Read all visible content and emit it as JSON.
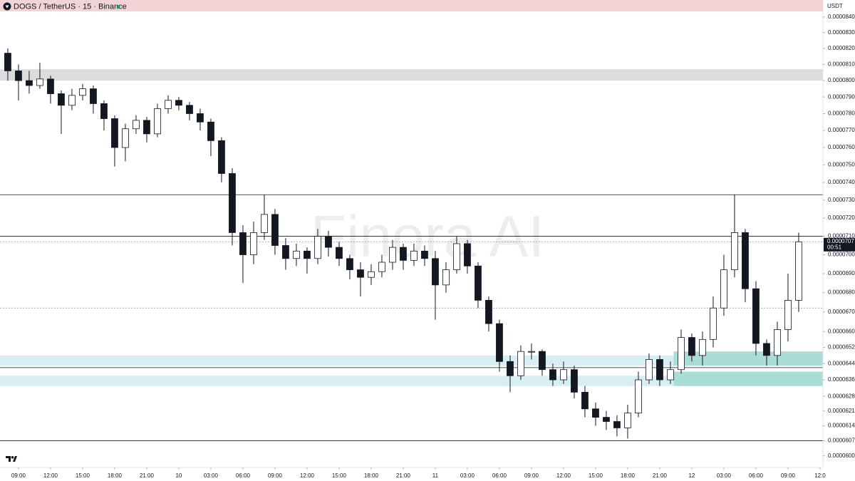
{
  "chart_data": {
    "type": "candlestick",
    "title": "DOGS / TetherUS · 15 · Binance",
    "currency": "USDT",
    "watermark": "Finora AI",
    "ylog": true,
    "ylim": [
      5.95e-05,
      8.51e-05
    ],
    "xlim": [
      7.27,
      84.27
    ],
    "yticks": [
      {
        "value": 8.4e-05,
        "label": "0.0000840"
      },
      {
        "value": 8.3e-05,
        "label": "0.0000830"
      },
      {
        "value": 8.2e-05,
        "label": "0.0000820"
      },
      {
        "value": 8.1e-05,
        "label": "0.0000810"
      },
      {
        "value": 8e-05,
        "label": "0.0000800"
      },
      {
        "value": 7.9e-05,
        "label": "0.0000790"
      },
      {
        "value": 7.8e-05,
        "label": "0.0000780"
      },
      {
        "value": 7.7e-05,
        "label": "0.0000770"
      },
      {
        "value": 7.6e-05,
        "label": "0.0000760"
      },
      {
        "value": 7.5e-05,
        "label": "0.0000750"
      },
      {
        "value": 7.4e-05,
        "label": "0.0000740"
      },
      {
        "value": 7.3e-05,
        "label": "0.0000730"
      },
      {
        "value": 7.2e-05,
        "label": "0.0000720"
      },
      {
        "value": 7.1e-05,
        "label": "0.0000710"
      },
      {
        "value": 7e-05,
        "label": "0.0000700"
      },
      {
        "value": 6.9e-05,
        "label": "0.0000690"
      },
      {
        "value": 6.8e-05,
        "label": "0.0000680"
      },
      {
        "value": 6.7e-05,
        "label": "0.0000670"
      },
      {
        "value": 6.6e-05,
        "label": "0.0000660"
      },
      {
        "value": 6.52e-05,
        "label": "0.0000652"
      },
      {
        "value": 6.44e-05,
        "label": "0.0000644"
      },
      {
        "value": 6.36e-05,
        "label": "0.0000636"
      },
      {
        "value": 6.28e-05,
        "label": "0.0000628"
      },
      {
        "value": 6.21e-05,
        "label": "0.0000621"
      },
      {
        "value": 6.14e-05,
        "label": "0.0000614"
      },
      {
        "value": 6.07e-05,
        "label": "0.0000607"
      },
      {
        "value": 6e-05,
        "label": "0.0000600"
      }
    ],
    "xticks": [
      {
        "value": 9,
        "label": "09:00"
      },
      {
        "value": 12,
        "label": "12:00"
      },
      {
        "value": 15,
        "label": "15:00"
      },
      {
        "value": 18,
        "label": "18:00"
      },
      {
        "value": 21,
        "label": "21:00"
      },
      {
        "value": 24,
        "label": "10"
      },
      {
        "value": 27,
        "label": "03:00"
      },
      {
        "value": 30,
        "label": "06:00"
      },
      {
        "value": 33,
        "label": "09:00"
      },
      {
        "value": 36,
        "label": "12:00"
      },
      {
        "value": 39,
        "label": "15:00"
      },
      {
        "value": 42,
        "label": "18:00"
      },
      {
        "value": 45,
        "label": "21:00"
      },
      {
        "value": 48,
        "label": "11"
      },
      {
        "value": 51,
        "label": "03:00"
      },
      {
        "value": 54,
        "label": "06:00"
      },
      {
        "value": 57,
        "label": "09:00"
      },
      {
        "value": 60,
        "label": "12:00"
      },
      {
        "value": 63,
        "label": "15:00"
      },
      {
        "value": 66,
        "label": "18:00"
      },
      {
        "value": 69,
        "label": "21:00"
      },
      {
        "value": 72,
        "label": "12"
      },
      {
        "value": 75,
        "label": "03:00"
      },
      {
        "value": 78,
        "label": "06:00"
      },
      {
        "value": 81,
        "label": "09:00"
      },
      {
        "value": 84,
        "label": "12:0"
      }
    ],
    "last_price": {
      "value": 7.07e-05,
      "label": "0.0000707"
    },
    "countdown": "00:51",
    "levels": [
      {
        "value": 7.33e-05,
        "style": "solid"
      },
      {
        "value": 7.1e-05,
        "style": "solid"
      },
      {
        "value": 6.42e-05,
        "style": "solid"
      },
      {
        "value": 6.07e-05,
        "style": "solid"
      },
      {
        "value": 7.07e-05,
        "style": "dotted"
      },
      {
        "value": 6.72e-05,
        "style": "dotted"
      }
    ],
    "zones": [
      {
        "range": [
          8e-05,
          8.07e-05
        ],
        "color": "#dcdcdc",
        "x_from": 7.27
      },
      {
        "range": [
          6.43e-05,
          6.48e-05
        ],
        "color": "#d7eef2",
        "x_from": 7.27
      },
      {
        "range": [
          6.33e-05,
          6.38e-05
        ],
        "color": "#d7eef2",
        "x_from": 7.27
      },
      {
        "range": [
          6.43e-05,
          6.5e-05
        ],
        "color": "#a9ddd6",
        "x_from": 70.3
      },
      {
        "range": [
          6.33e-05,
          6.4e-05
        ],
        "color": "#a9ddd6",
        "x_from": 70.3
      }
    ],
    "x": [
      8,
      9,
      10,
      11,
      12,
      13,
      14,
      15,
      16,
      17,
      18,
      19,
      20,
      21,
      22,
      23,
      24,
      25,
      26,
      27,
      28,
      29,
      30,
      31,
      32,
      33,
      34,
      35,
      36,
      37,
      38,
      39,
      40,
      41,
      42,
      43,
      44,
      45,
      46,
      47,
      48,
      49,
      50,
      51,
      52,
      53,
      54,
      55,
      56,
      57,
      58,
      59,
      60,
      61,
      62,
      63,
      64,
      65,
      66,
      67,
      68,
      69,
      70,
      71,
      72,
      73,
      74,
      75,
      76,
      77,
      78,
      79,
      80,
      81,
      82
    ],
    "open": [
      8.17e-05,
      8.06e-05,
      8e-05,
      7.97e-05,
      8.01e-05,
      7.92e-05,
      7.85e-05,
      7.91e-05,
      7.95e-05,
      7.86e-05,
      7.77e-05,
      7.6e-05,
      7.71e-05,
      7.76e-05,
      7.68e-05,
      7.83e-05,
      7.88e-05,
      7.85e-05,
      7.8e-05,
      7.75e-05,
      7.64e-05,
      7.45e-05,
      7.12e-05,
      7e-05,
      7.12e-05,
      7.22e-05,
      7.05e-05,
      6.98e-05,
      7.02e-05,
      6.98e-05,
      7.1e-05,
      7.04e-05,
      6.98e-05,
      6.92e-05,
      6.88e-05,
      6.91e-05,
      6.96e-05,
      7.04e-05,
      6.97e-05,
      7.02e-05,
      6.98e-05,
      6.84e-05,
      6.92e-05,
      7.06e-05,
      6.94e-05,
      6.76e-05,
      6.64e-05,
      6.45e-05,
      6.38e-05,
      6.5e-05,
      6.5e-05,
      6.41e-05,
      6.36e-05,
      6.41e-05,
      6.3e-05,
      6.22e-05,
      6.18e-05,
      6.16e-05,
      6.13e-05,
      6.2e-05,
      6.36e-05,
      6.46e-05,
      6.36e-05,
      6.41e-05,
      6.57e-05,
      6.48e-05,
      6.56e-05,
      6.72e-05,
      6.92e-05,
      7.12e-05,
      6.82e-05,
      6.54e-05,
      6.48e-05,
      6.61e-05,
      6.76e-05
    ],
    "high": [
      8.2e-05,
      8.1e-05,
      8.06e-05,
      8.11e-05,
      8.03e-05,
      7.94e-05,
      7.95e-05,
      7.98e-05,
      7.97e-05,
      7.88e-05,
      7.79e-05,
      7.74e-05,
      7.79e-05,
      7.78e-05,
      7.86e-05,
      7.91e-05,
      7.9e-05,
      7.87e-05,
      7.83e-05,
      7.77e-05,
      7.66e-05,
      7.48e-05,
      7.16e-05,
      7.18e-05,
      7.33e-05,
      7.25e-05,
      7.09e-05,
      7.06e-05,
      7.04e-05,
      7.14e-05,
      7.13e-05,
      7.07e-05,
      7e-05,
      6.96e-05,
      6.95e-05,
      7e-05,
      7.08e-05,
      7.06e-05,
      7.06e-05,
      7.05e-05,
      7.02e-05,
      6.96e-05,
      7.1e-05,
      7.08e-05,
      6.96e-05,
      6.78e-05,
      6.66e-05,
      6.48e-05,
      6.53e-05,
      6.54e-05,
      6.51e-05,
      6.44e-05,
      6.45e-05,
      6.43e-05,
      6.33e-05,
      6.25e-05,
      6.21e-05,
      6.19e-05,
      6.24e-05,
      6.4e-05,
      6.49e-05,
      6.48e-05,
      6.45e-05,
      6.61e-05,
      6.59e-05,
      6.6e-05,
      6.78e-05,
      7e-05,
      7.33e-05,
      7.14e-05,
      6.86e-05,
      6.56e-05,
      6.65e-05,
      6.9e-05,
      7.12e-05
    ],
    "low": [
      8e-05,
      7.88e-05,
      7.92e-05,
      7.95e-05,
      7.86e-05,
      7.68e-05,
      7.82e-05,
      7.88e-05,
      7.8e-05,
      7.7e-05,
      7.49e-05,
      7.52e-05,
      7.68e-05,
      7.63e-05,
      7.66e-05,
      7.8e-05,
      7.82e-05,
      7.76e-05,
      7.7e-05,
      7.55e-05,
      7.4e-05,
      7.05e-05,
      6.85e-05,
      6.95e-05,
      7.08e-05,
      7e-05,
      6.92e-05,
      6.94e-05,
      6.9e-05,
      6.95e-05,
      6.99e-05,
      6.94e-05,
      6.87e-05,
      6.78e-05,
      6.84e-05,
      6.88e-05,
      6.92e-05,
      6.92e-05,
      6.94e-05,
      6.94e-05,
      6.66e-05,
      6.8e-05,
      6.9e-05,
      6.9e-05,
      6.72e-05,
      6.6e-05,
      6.4e-05,
      6.3e-05,
      6.36e-05,
      6.46e-05,
      6.38e-05,
      6.33e-05,
      6.34e-05,
      6.27e-05,
      6.18e-05,
      6.14e-05,
      6.12e-05,
      6.09e-05,
      6.08e-05,
      6.18e-05,
      6.34e-05,
      6.33e-05,
      6.34e-05,
      6.39e-05,
      6.45e-05,
      6.43e-05,
      6.52e-05,
      6.68e-05,
      6.88e-05,
      6.75e-05,
      6.48e-05,
      6.43e-05,
      6.43e-05,
      6.55e-05,
      6.7e-05
    ],
    "close": [
      8.06e-05,
      8e-05,
      7.97e-05,
      8.01e-05,
      7.92e-05,
      7.85e-05,
      7.91e-05,
      7.95e-05,
      7.86e-05,
      7.77e-05,
      7.6e-05,
      7.71e-05,
      7.76e-05,
      7.68e-05,
      7.83e-05,
      7.88e-05,
      7.85e-05,
      7.8e-05,
      7.75e-05,
      7.64e-05,
      7.45e-05,
      7.12e-05,
      7e-05,
      7.12e-05,
      7.22e-05,
      7.05e-05,
      6.98e-05,
      7.02e-05,
      6.98e-05,
      7.1e-05,
      7.04e-05,
      6.98e-05,
      6.92e-05,
      6.88e-05,
      6.91e-05,
      6.96e-05,
      7.04e-05,
      6.97e-05,
      7.02e-05,
      6.98e-05,
      6.84e-05,
      6.92e-05,
      7.06e-05,
      6.94e-05,
      6.76e-05,
      6.64e-05,
      6.45e-05,
      6.38e-05,
      6.5e-05,
      6.5e-05,
      6.41e-05,
      6.36e-05,
      6.41e-05,
      6.3e-05,
      6.22e-05,
      6.18e-05,
      6.16e-05,
      6.13e-05,
      6.2e-05,
      6.36e-05,
      6.46e-05,
      6.36e-05,
      6.41e-05,
      6.57e-05,
      6.48e-05,
      6.56e-05,
      6.72e-05,
      6.92e-05,
      7.12e-05,
      6.82e-05,
      6.54e-05,
      6.48e-05,
      6.61e-05,
      6.76e-05,
      7.07e-05
    ]
  }
}
